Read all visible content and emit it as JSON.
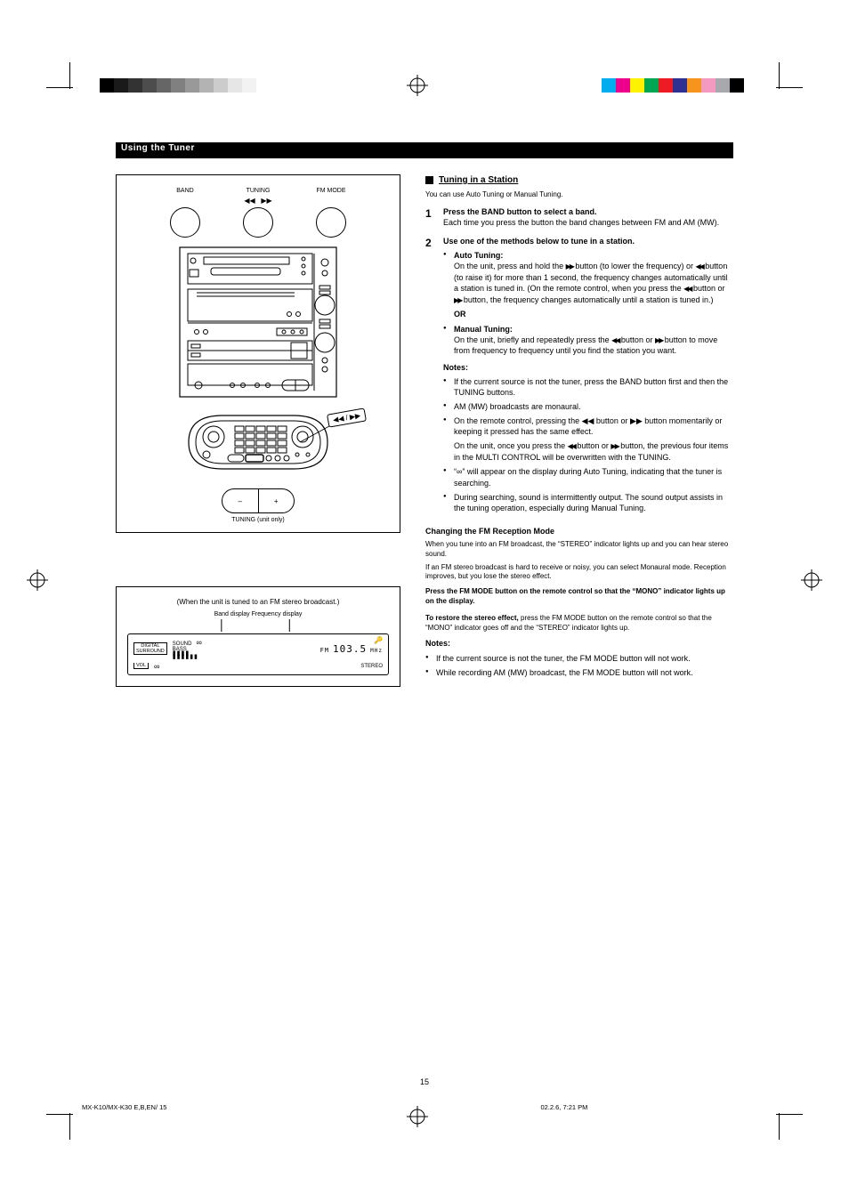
{
  "page": {
    "number": "15",
    "footer_left": "MX-K10/MX-K30  E,B,EN/ 15",
    "footer_right": "02.2.6, 7:21 PM"
  },
  "band": {
    "title": "Using the Tuner"
  },
  "fig_top": {
    "dials": {
      "left": {
        "label": "BAND"
      },
      "mid": {
        "label": "TUNING",
        "sym_left": "◀◀",
        "sym_right": "▶▶"
      },
      "right": {
        "label": "FM MODE"
      }
    },
    "remote_callout": "◀◀ / ▶▶",
    "pill": {
      "left": "–",
      "right": "+",
      "caption": "TUNING (unit only)"
    }
  },
  "fig_disp": {
    "caption": "(When the unit is tuned to an FM stereo broadcast.)",
    "pointer": "Band display   Frequency display",
    "badge1": "DIGITAL",
    "badge1b": "SURROUND",
    "row1": "SOUND",
    "row2": "BASS",
    "vol": "VOL",
    "freq": "103.5",
    "mhz": "MHz",
    "band": "FM",
    "stereo": "STEREO",
    "key": "🔑"
  },
  "right": {
    "h1_prefix": "■",
    "h1": "Tuning in a Station",
    "p1": "You can use Auto Tuning or Manual Tuning.",
    "step1": {
      "num": "1",
      "lead": "Press the BAND button to select a band.",
      "body": "Each time you press the button the band changes between FM and AM (MW)."
    },
    "step2": {
      "num": "2",
      "lead": "Use one of the methods below to tune in a station.",
      "auto_h": "Auto Tuning:",
      "auto_b1": "On the unit, press and hold the ",
      "auto_b2": " button (to lower the frequency) or ",
      "auto_b3": " button (to raise it) for more than 1 second, the frequency changes automatically until a station is tuned in. (On the remote control, when you press the ",
      "auto_b4": " button or ",
      "auto_b5": " button, the frequency changes automatically until a station is tuned in.)",
      "or": "OR",
      "man_h": "Manual Tuning:",
      "man_b1": "On the unit, briefly and repeatedly press the ",
      "man_b2": " button or ",
      "man_b3": " button to move from frequency to frequency until you find the station you want."
    },
    "notes_h": "Notes:",
    "notes": [
      "If the current source is not the tuner, press the BAND button first and then the TUNING buttons.",
      "AM (MW) broadcasts are monaural.",
      "On the remote control, pressing the ◀◀ button or ▶▶ button momentarily or keeping it pressed has the same effect."
    ],
    "note_tail1": "On the unit, once you press the ",
    "note_tail2": " button or ",
    "note_tail3": " button, the previous four items in the MULTI CONTROL will be overwritten with the TUNING.",
    "notes2": [
      "“∞” will appear on the display during Auto Tuning, indicating that the tuner is searching.",
      "During searching, sound is intermittently output. The sound output assists in the tuning operation, especially during Manual Tuning."
    ],
    "fm_h": "Changing the FM Reception Mode",
    "fm_p1": "When you tune into an FM broadcast, the “STEREO” indicator lights up and you can hear stereo sound.",
    "fm_p2": "If an FM stereo broadcast is hard to receive or noisy, you can select Monaural mode. Reception improves, but you lose the stereo effect.",
    "fm_p3": "Press the FM MODE button on the remote control so that the “MONO” indicator lights up on the display.",
    "fm_restore_h": "To restore the stereo effect,",
    "fm_restore_b": " press the FM MODE button on the remote control so that the “MONO” indicator goes off and the “STEREO” indicator lights up.",
    "fm_notes": [
      "If the current source is not the tuner, the FM MODE button will not work.",
      "While recording AM (MW) broadcast, the FM MODE button will not work."
    ]
  },
  "colors": {
    "colorbar": [
      "#00aeef",
      "#ec008c",
      "#fff200",
      "#00a651",
      "#ed1c24",
      "#2e3192",
      "#f7941d",
      "#f49ac1",
      "#a7a9ac",
      "#000000"
    ],
    "greysteps": [
      "#000000",
      "#1a1a1a",
      "#333333",
      "#4d4d4d",
      "#666666",
      "#808080",
      "#999999",
      "#b3b3b3",
      "#cccccc",
      "#e6e6e6",
      "#f2f2f2",
      "#ffffff"
    ]
  }
}
